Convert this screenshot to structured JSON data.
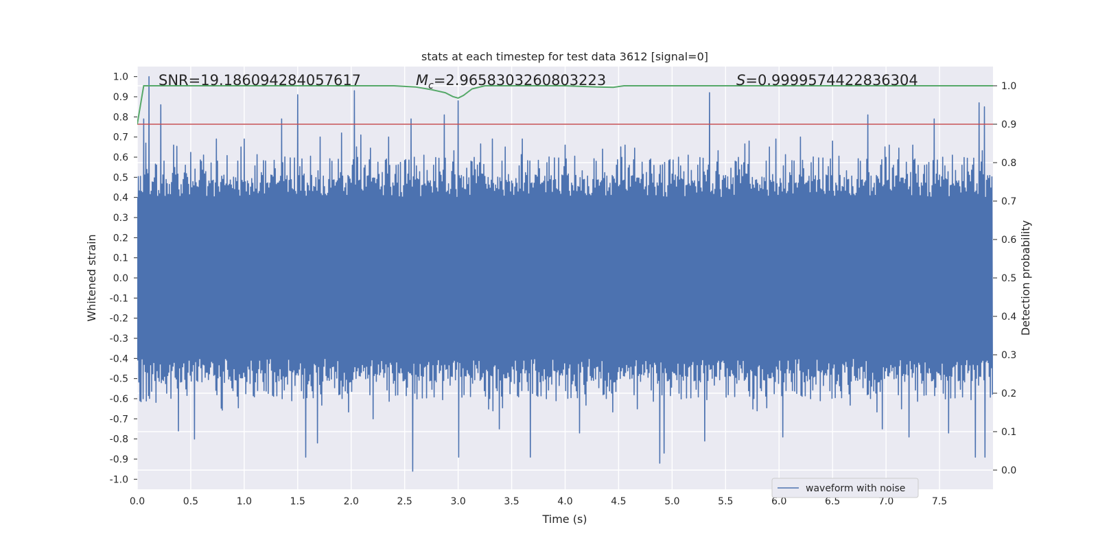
{
  "chart_data": {
    "type": "line",
    "title": "stats at each timestep for test data 3612 [signal=0]",
    "xlabel": "Time (s)",
    "ylabel": "Whitened strain",
    "y2label": "Detection probability",
    "xlim": [
      0.0,
      8.0
    ],
    "ylim": [
      -1.05,
      1.05
    ],
    "y2lim": [
      -0.05,
      1.05
    ],
    "xticks": [
      0.0,
      0.5,
      1.0,
      1.5,
      2.0,
      2.5,
      3.0,
      3.5,
      4.0,
      4.5,
      5.0,
      5.5,
      6.0,
      6.5,
      7.0,
      7.5
    ],
    "xtick_labels": [
      "0.0",
      "0.5",
      "1.0",
      "1.5",
      "2.0",
      "2.5",
      "3.0",
      "3.5",
      "4.0",
      "4.5",
      "5.0",
      "5.5",
      "6.0",
      "6.5",
      "7.0",
      "7.5"
    ],
    "yticks": [
      1.0,
      0.9,
      0.8,
      0.7,
      0.6,
      0.5,
      0.4,
      0.3,
      0.2,
      0.1,
      0.0,
      -0.1,
      -0.2,
      -0.3,
      -0.4,
      -0.5,
      -0.6,
      -0.7,
      -0.8,
      -0.9,
      -1.0
    ],
    "ytick_labels": [
      "1.0",
      "0.9",
      "0.8",
      "0.7",
      "0.6",
      "0.5",
      "0.4",
      "0.3",
      "0.2",
      "0.1",
      "0.0",
      "-0.1",
      "-0.2",
      "-0.3",
      "-0.4",
      "-0.5",
      "-0.6",
      "-0.7",
      "-0.8",
      "-0.9",
      "-1.0"
    ],
    "y2ticks": [
      1.0,
      0.9,
      0.8,
      0.7,
      0.6,
      0.5,
      0.4,
      0.3,
      0.2,
      0.1,
      0.0
    ],
    "y2tick_labels": [
      "1.0",
      "0.9",
      "0.8",
      "0.7",
      "0.6",
      "0.5",
      "0.4",
      "0.3",
      "0.2",
      "0.1",
      "0.0"
    ],
    "grid": true,
    "legend": {
      "label": "waveform with noise",
      "position": "lower-right"
    },
    "annotations": {
      "snr_prefix": "SNR=",
      "snr_value": "19.186094284057617",
      "mc_symbol": "M",
      "mc_subscript": "c",
      "mc_value": "=2.9658303260803223",
      "s_symbol": "S",
      "s_value": "=0.9999574422836304"
    },
    "waveform": {
      "name": "waveform with noise",
      "color": "#4c72b0",
      "duration": 8.0,
      "sample_count": 1600,
      "seed": 3612,
      "upper_peaks": [
        {
          "t": 0.06,
          "y": 0.79
        },
        {
          "t": 0.08,
          "y": 0.67
        },
        {
          "t": 0.11,
          "y": 1.0
        },
        {
          "t": 0.22,
          "y": 0.86
        },
        {
          "t": 0.34,
          "y": 0.66
        },
        {
          "t": 0.45,
          "y": 0.56
        },
        {
          "t": 0.74,
          "y": 0.69
        },
        {
          "t": 1.0,
          "y": 0.69
        },
        {
          "t": 1.35,
          "y": 0.79
        },
        {
          "t": 1.5,
          "y": 0.91
        },
        {
          "t": 1.71,
          "y": 0.7
        },
        {
          "t": 1.91,
          "y": 0.72
        },
        {
          "t": 2.03,
          "y": 0.93
        },
        {
          "t": 2.09,
          "y": 0.71
        },
        {
          "t": 2.35,
          "y": 0.7
        },
        {
          "t": 2.56,
          "y": 0.79
        },
        {
          "t": 2.87,
          "y": 0.81
        },
        {
          "t": 3.0,
          "y": 0.88
        },
        {
          "t": 3.32,
          "y": 0.69
        },
        {
          "t": 3.6,
          "y": 0.69
        },
        {
          "t": 4.0,
          "y": 0.66
        },
        {
          "t": 4.35,
          "y": 0.64
        },
        {
          "t": 5.35,
          "y": 0.92
        },
        {
          "t": 5.72,
          "y": 0.68
        },
        {
          "t": 5.97,
          "y": 0.69
        },
        {
          "t": 6.2,
          "y": 0.7
        },
        {
          "t": 6.5,
          "y": 0.68
        },
        {
          "t": 6.83,
          "y": 0.81
        },
        {
          "t": 7.25,
          "y": 0.66
        },
        {
          "t": 7.45,
          "y": 0.79
        },
        {
          "t": 7.87,
          "y": 0.87
        },
        {
          "t": 7.92,
          "y": 0.85
        }
      ],
      "lower_peaks": [
        {
          "t": 0.02,
          "y": -0.61
        },
        {
          "t": 0.05,
          "y": -0.6
        },
        {
          "t": 0.38,
          "y": -0.76
        },
        {
          "t": 0.53,
          "y": -0.8
        },
        {
          "t": 1.57,
          "y": -0.89
        },
        {
          "t": 1.68,
          "y": -0.82
        },
        {
          "t": 2.2,
          "y": -0.7
        },
        {
          "t": 2.57,
          "y": -0.96
        },
        {
          "t": 3.0,
          "y": -0.89
        },
        {
          "t": 3.38,
          "y": -0.75
        },
        {
          "t": 3.67,
          "y": -0.89
        },
        {
          "t": 4.13,
          "y": -0.77
        },
        {
          "t": 4.88,
          "y": -0.92
        },
        {
          "t": 4.92,
          "y": -0.87
        },
        {
          "t": 5.3,
          "y": -0.81
        },
        {
          "t": 6.03,
          "y": -0.79
        },
        {
          "t": 6.96,
          "y": -0.75
        },
        {
          "t": 7.21,
          "y": -0.79
        },
        {
          "t": 7.58,
          "y": -0.77
        },
        {
          "t": 7.83,
          "y": -0.89
        },
        {
          "t": 7.92,
          "y": -0.89
        }
      ]
    },
    "probability": {
      "name": "detection probability",
      "color": "#55a868",
      "axis": "right",
      "x": [
        0.0,
        0.06,
        2.4,
        2.6,
        2.75,
        2.88,
        2.95,
        3.0,
        3.05,
        3.13,
        3.25,
        3.5,
        4.0,
        4.3,
        4.45,
        4.55,
        5.0,
        8.0
      ],
      "y": [
        0.9,
        1.0,
        1.0,
        0.997,
        0.99,
        0.982,
        0.972,
        0.968,
        0.975,
        0.992,
        1.0,
        1.0,
        1.0,
        0.997,
        0.996,
        1.0,
        1.0,
        1.0
      ]
    },
    "threshold": {
      "value": 0.9,
      "axis": "right",
      "color": "#c44e52"
    }
  }
}
